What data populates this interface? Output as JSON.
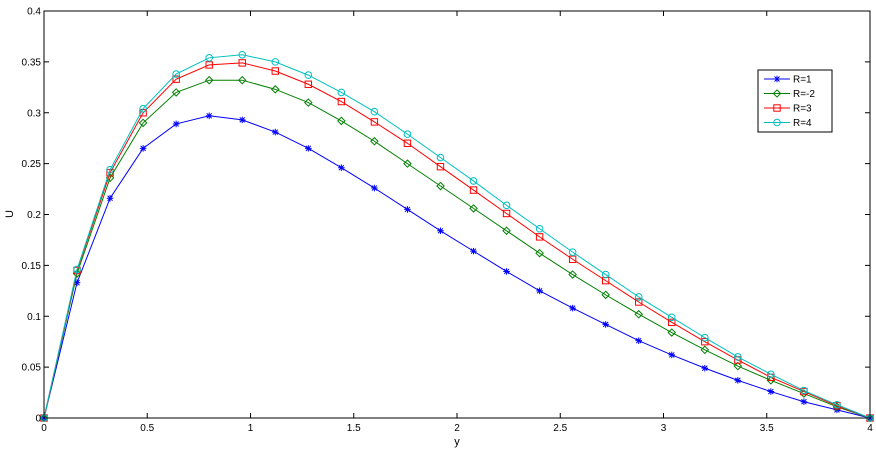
{
  "chart_data": {
    "type": "line",
    "xlabel": "y",
    "ylabel": "U",
    "xlim": [
      0,
      4
    ],
    "ylim": [
      0,
      0.4
    ],
    "xticks": [
      "0",
      "0.5",
      "1",
      "1.5",
      "2",
      "2.5",
      "3",
      "3.5",
      "4"
    ],
    "yticks": [
      "0",
      "0.05",
      "0.1",
      "0.15",
      "0.2",
      "0.25",
      "0.3",
      "0.35",
      "0.4"
    ],
    "grid": false,
    "legend_position": "top-right",
    "x": [
      0,
      0.16,
      0.32,
      0.48,
      0.64,
      0.8,
      0.96,
      1.12,
      1.28,
      1.44,
      1.6,
      1.76,
      1.92,
      2.08,
      2.24,
      2.4,
      2.56,
      2.72,
      2.88,
      3.04,
      3.2,
      3.36,
      3.52,
      3.68,
      3.84,
      4.0
    ],
    "series": [
      {
        "name": "R=1",
        "color": "#0000ff",
        "marker": "star",
        "values": [
          0,
          0.133,
          0.216,
          0.265,
          0.289,
          0.297,
          0.293,
          0.281,
          0.265,
          0.246,
          0.226,
          0.205,
          0.184,
          0.164,
          0.144,
          0.125,
          0.108,
          0.092,
          0.076,
          0.062,
          0.049,
          0.037,
          0.026,
          0.016,
          0.008,
          0
        ]
      },
      {
        "name": "R=-2",
        "color": "#008000",
        "marker": "diamond",
        "values": [
          0,
          0.142,
          0.236,
          0.29,
          0.32,
          0.332,
          0.332,
          0.323,
          0.31,
          0.292,
          0.272,
          0.25,
          0.228,
          0.206,
          0.184,
          0.162,
          0.141,
          0.121,
          0.102,
          0.084,
          0.067,
          0.051,
          0.037,
          0.024,
          0.011,
          0
        ]
      },
      {
        "name": "R=3",
        "color": "#ff0000",
        "marker": "square",
        "values": [
          0,
          0.145,
          0.241,
          0.3,
          0.333,
          0.347,
          0.349,
          0.341,
          0.328,
          0.311,
          0.291,
          0.27,
          0.247,
          0.224,
          0.201,
          0.178,
          0.156,
          0.135,
          0.114,
          0.094,
          0.075,
          0.057,
          0.04,
          0.026,
          0.012,
          0
        ]
      },
      {
        "name": "R=4",
        "color": "#00bfbf",
        "marker": "circle",
        "values": [
          0,
          0.146,
          0.244,
          0.304,
          0.338,
          0.354,
          0.357,
          0.35,
          0.337,
          0.32,
          0.301,
          0.279,
          0.256,
          0.233,
          0.209,
          0.186,
          0.163,
          0.141,
          0.119,
          0.099,
          0.079,
          0.06,
          0.043,
          0.027,
          0.013,
          0
        ]
      }
    ]
  }
}
